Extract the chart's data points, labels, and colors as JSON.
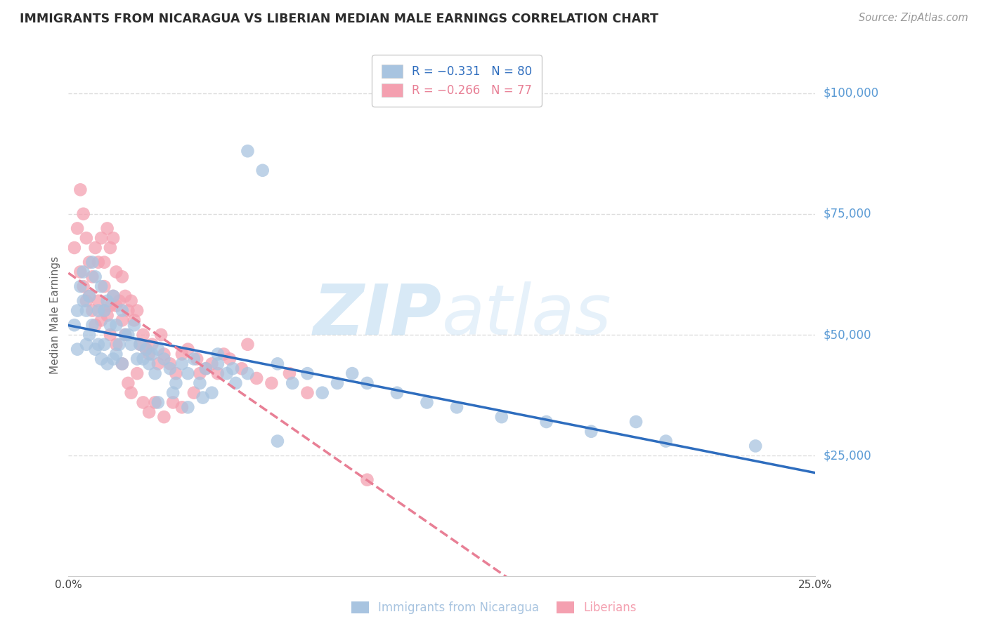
{
  "title": "IMMIGRANTS FROM NICARAGUA VS LIBERIAN MEDIAN MALE EARNINGS CORRELATION CHART",
  "source": "Source: ZipAtlas.com",
  "ylabel": "Median Male Earnings",
  "y_tick_labels": [
    "$100,000",
    "$75,000",
    "$50,000",
    "$25,000"
  ],
  "y_tick_values": [
    100000,
    75000,
    50000,
    25000
  ],
  "y_lim": [
    0,
    108000
  ],
  "x_lim": [
    0.0,
    0.25
  ],
  "legend_entry_blue": "R = −0.331   N = 80",
  "legend_entry_pink": "R = −0.266   N = 77",
  "legend_label_blue": "Immigrants from Nicaragua",
  "legend_label_pink": "Liberians",
  "watermark": "ZIPatlas",
  "title_color": "#2c2c2c",
  "source_color": "#999999",
  "axis_label_color": "#666666",
  "tick_color_right": "#5b9bd5",
  "grid_color": "#dddddd",
  "scatter_blue_color": "#a8c4e0",
  "scatter_pink_color": "#f4a0b0",
  "line_blue_color": "#2e6dbe",
  "line_pink_color": "#e87f95",
  "nicaragua_x": [
    0.002,
    0.003,
    0.003,
    0.004,
    0.005,
    0.005,
    0.006,
    0.006,
    0.007,
    0.007,
    0.008,
    0.008,
    0.009,
    0.009,
    0.01,
    0.01,
    0.011,
    0.011,
    0.012,
    0.012,
    0.013,
    0.013,
    0.014,
    0.015,
    0.015,
    0.016,
    0.016,
    0.017,
    0.018,
    0.018,
    0.019,
    0.02,
    0.021,
    0.022,
    0.023,
    0.024,
    0.025,
    0.026,
    0.027,
    0.028,
    0.029,
    0.03,
    0.032,
    0.034,
    0.036,
    0.038,
    0.04,
    0.042,
    0.044,
    0.046,
    0.048,
    0.05,
    0.053,
    0.056,
    0.06,
    0.065,
    0.07,
    0.075,
    0.08,
    0.085,
    0.09,
    0.095,
    0.1,
    0.11,
    0.12,
    0.13,
    0.145,
    0.16,
    0.175,
    0.19,
    0.03,
    0.035,
    0.04,
    0.045,
    0.05,
    0.055,
    0.06,
    0.07,
    0.2,
    0.23
  ],
  "nicaragua_y": [
    52000,
    55000,
    47000,
    60000,
    63000,
    57000,
    55000,
    48000,
    58000,
    50000,
    65000,
    52000,
    62000,
    47000,
    55000,
    48000,
    60000,
    45000,
    55000,
    48000,
    57000,
    44000,
    52000,
    58000,
    45000,
    52000,
    46000,
    48000,
    55000,
    44000,
    50000,
    50000,
    48000,
    52000,
    45000,
    48000,
    45000,
    47000,
    44000,
    46000,
    42000,
    47000,
    45000,
    43000,
    40000,
    44000,
    42000,
    45000,
    40000,
    43000,
    38000,
    44000,
    42000,
    40000,
    88000,
    84000,
    44000,
    40000,
    42000,
    38000,
    40000,
    42000,
    40000,
    38000,
    36000,
    35000,
    33000,
    32000,
    30000,
    32000,
    36000,
    38000,
    35000,
    37000,
    46000,
    43000,
    42000,
    28000,
    28000,
    27000
  ],
  "liberian_x": [
    0.002,
    0.003,
    0.004,
    0.004,
    0.005,
    0.005,
    0.006,
    0.006,
    0.007,
    0.007,
    0.008,
    0.008,
    0.009,
    0.009,
    0.01,
    0.01,
    0.011,
    0.011,
    0.012,
    0.012,
    0.013,
    0.013,
    0.014,
    0.014,
    0.015,
    0.015,
    0.016,
    0.016,
    0.017,
    0.018,
    0.018,
    0.019,
    0.019,
    0.02,
    0.021,
    0.022,
    0.023,
    0.024,
    0.025,
    0.026,
    0.027,
    0.028,
    0.03,
    0.031,
    0.032,
    0.034,
    0.036,
    0.038,
    0.04,
    0.043,
    0.046,
    0.05,
    0.054,
    0.058,
    0.063,
    0.068,
    0.074,
    0.08,
    0.06,
    0.052,
    0.048,
    0.044,
    0.042,
    0.038,
    0.035,
    0.032,
    0.029,
    0.027,
    0.025,
    0.023,
    0.021,
    0.02,
    0.018,
    0.016,
    0.014,
    0.012,
    0.1
  ],
  "liberian_y": [
    68000,
    72000,
    80000,
    63000,
    75000,
    60000,
    70000,
    57000,
    65000,
    58000,
    62000,
    55000,
    68000,
    52000,
    65000,
    57000,
    70000,
    53000,
    65000,
    60000,
    72000,
    54000,
    68000,
    56000,
    70000,
    58000,
    63000,
    56000,
    57000,
    62000,
    53000,
    58000,
    50000,
    55000,
    57000,
    53000,
    55000,
    48000,
    50000,
    47000,
    46000,
    48000,
    44000,
    50000,
    46000,
    44000,
    42000,
    46000,
    47000,
    45000,
    43000,
    42000,
    45000,
    43000,
    41000,
    40000,
    42000,
    38000,
    48000,
    46000,
    44000,
    42000,
    38000,
    35000,
    36000,
    33000,
    36000,
    34000,
    36000,
    42000,
    38000,
    40000,
    44000,
    48000,
    50000,
    55000,
    20000
  ]
}
